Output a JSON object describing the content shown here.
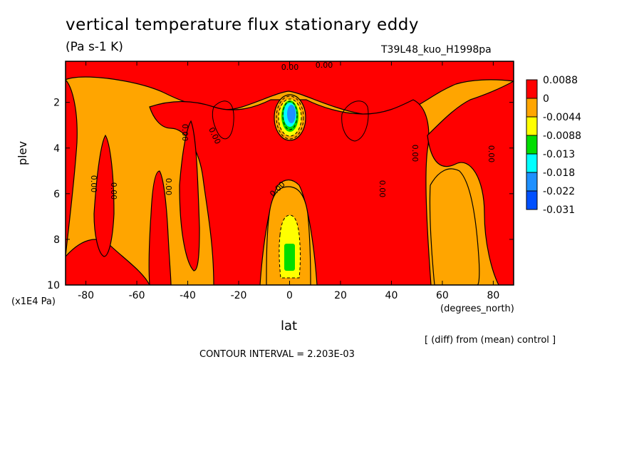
{
  "chart_data": {
    "type": "heatmap",
    "title": "vertical temperature flux stationary eddy",
    "units": "(Pa s-1 K)",
    "run_label": "T39L48_kuo_H1998pa",
    "xlabel": "lat",
    "x_units": "(degrees_north)",
    "ylabel": "plev",
    "y_units": "(x1E4 Pa)",
    "xlim": [
      -88,
      88
    ],
    "ylim": [
      10,
      0.2
    ],
    "x_ticks": [
      "-80",
      "-60",
      "-40",
      "-20",
      "0",
      "20",
      "40",
      "60",
      "80"
    ],
    "y_ticks": [
      "2",
      "4",
      "6",
      "8",
      "10"
    ],
    "x_tick_values": [
      -80,
      -60,
      -40,
      -20,
      0,
      20,
      40,
      60,
      80
    ],
    "y_tick_values": [
      2,
      4,
      6,
      8,
      10
    ],
    "colorbar": {
      "labels": [
        "0.0088",
        "0",
        "-0.0044",
        "-0.0088",
        "-0.013",
        "-0.018",
        "-0.022",
        "-0.031"
      ],
      "colors": [
        "#ff0000",
        "#ffa500",
        "#ffff00",
        "#00dd00",
        "#00ffff",
        "#1e90ff",
        "#0050ff"
      ]
    },
    "contour_labels": [
      "0.00",
      "0.00",
      "0.00",
      "0.00",
      "0.00",
      "0.00",
      "0.00",
      "0.00",
      "0.00",
      "0.00",
      "0.00"
    ],
    "contour_interval_text": "CONTOUR INTERVAL = 2.203E-03",
    "note": "[ (diff) from (mean) control ]"
  }
}
